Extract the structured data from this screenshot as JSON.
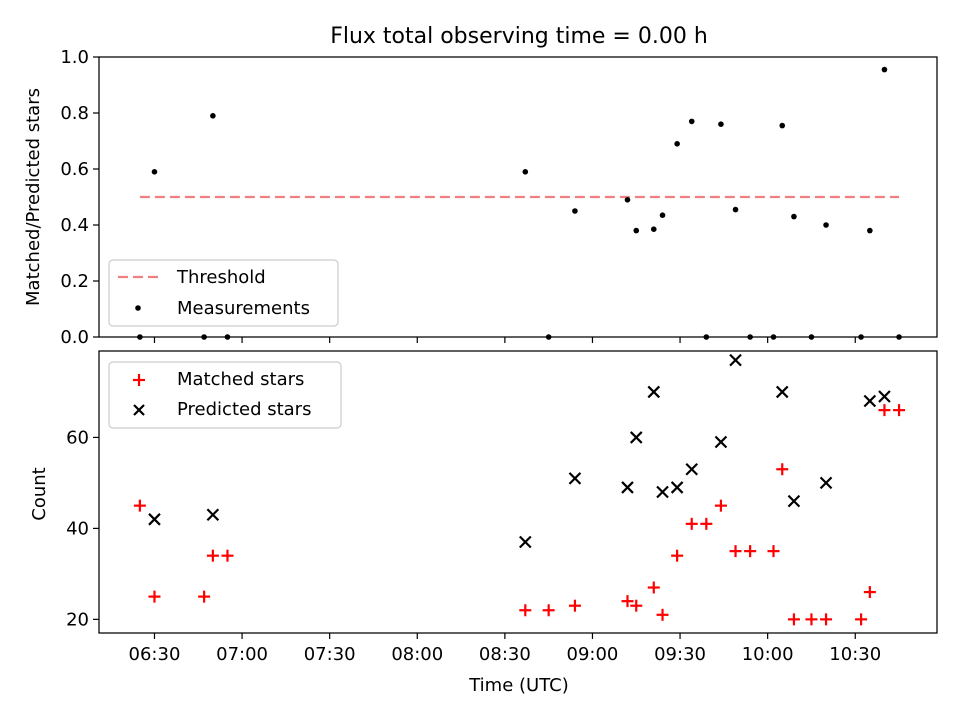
{
  "title": "Flux total observing time = 0.00 h",
  "colors": {
    "threshold": "#f08080",
    "measurement": "#000000",
    "matched": "#ff0000",
    "predicted": "#000000"
  },
  "chart_data": [
    {
      "type": "scatter",
      "ylabel": "Matched/Predicted stars",
      "xlim": [
        "06:11",
        "10:58"
      ],
      "ylim": [
        0,
        1.0
      ],
      "yticks": [
        0.0,
        0.2,
        0.4,
        0.6,
        0.8,
        1.0
      ],
      "ytick_labels": [
        "0.0",
        "0.2",
        "0.4",
        "0.6",
        "0.8",
        "1.0"
      ],
      "legend_position": "lower-left",
      "threshold": {
        "name": "Threshold",
        "value": 0.5,
        "x_start": "06:25",
        "x_end": "10:45"
      },
      "series": [
        {
          "name": "Measurements",
          "x": [
            "06:25",
            "06:30",
            "06:47",
            "06:50",
            "06:55",
            "08:37",
            "08:45",
            "08:54",
            "09:12",
            "09:15",
            "09:21",
            "09:24",
            "09:29",
            "09:34",
            "09:39",
            "09:44",
            "09:49",
            "09:54",
            "10:02",
            "10:05",
            "10:09",
            "10:15",
            "10:20",
            "10:32",
            "10:35",
            "10:40",
            "10:45"
          ],
          "y": [
            0.0,
            0.59,
            0.0,
            0.79,
            0.0,
            0.59,
            0.0,
            0.45,
            0.49,
            0.38,
            0.385,
            0.435,
            0.69,
            0.77,
            0.0,
            0.76,
            0.455,
            0.0,
            0.0,
            0.755,
            0.43,
            0.0,
            0.4,
            0.0,
            0.38,
            0.955,
            0.0
          ]
        }
      ]
    },
    {
      "type": "scatter",
      "xlabel": "Time (UTC)",
      "ylabel": "Count",
      "xlim": [
        "06:11",
        "10:58"
      ],
      "ylim": [
        17,
        79
      ],
      "yticks": [
        20,
        40,
        60
      ],
      "ytick_labels": [
        "20",
        "40",
        "60"
      ],
      "xticks": [
        "06:30",
        "07:00",
        "07:30",
        "08:00",
        "08:30",
        "09:00",
        "09:30",
        "10:00",
        "10:30"
      ],
      "legend_position": "upper-left",
      "series": [
        {
          "name": "Matched stars",
          "marker": "plus",
          "x": [
            "06:25",
            "06:30",
            "06:47",
            "06:50",
            "06:55",
            "08:37",
            "08:45",
            "08:54",
            "09:12",
            "09:15",
            "09:21",
            "09:24",
            "09:29",
            "09:34",
            "09:39",
            "09:44",
            "09:49",
            "09:54",
            "10:02",
            "10:05",
            "10:09",
            "10:15",
            "10:20",
            "10:32",
            "10:35",
            "10:40",
            "10:45"
          ],
          "y": [
            45,
            25,
            25,
            34,
            34,
            22,
            22,
            23,
            24,
            23,
            27,
            21,
            34,
            41,
            41,
            45,
            35,
            35,
            35,
            53,
            20,
            20,
            20,
            20,
            26,
            66,
            66
          ]
        },
        {
          "name": "Predicted stars",
          "marker": "x",
          "x": [
            "06:30",
            "06:50",
            "08:37",
            "08:54",
            "09:12",
            "09:15",
            "09:21",
            "09:24",
            "09:29",
            "09:34",
            "09:44",
            "09:49",
            "10:05",
            "10:09",
            "10:20",
            "10:35",
            "10:40"
          ],
          "y": [
            42,
            43,
            37,
            51,
            49,
            60,
            70,
            48,
            49,
            53,
            59,
            77,
            70,
            46,
            50,
            68,
            69
          ]
        }
      ]
    }
  ]
}
